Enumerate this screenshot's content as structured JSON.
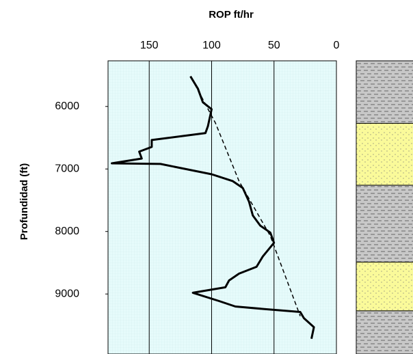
{
  "chart_data": {
    "type": "line",
    "title": "ROP ft/hr",
    "y_label": "Profundidad  (ft)",
    "xlim": [
      183,
      0
    ],
    "xticks": [
      150,
      100,
      50,
      0
    ],
    "ylim": [
      5270,
      9960
    ],
    "yticks": [
      6000,
      7000,
      8000,
      9000
    ],
    "grid": true,
    "series": [
      {
        "style": "solid",
        "color": "#000000",
        "values": [
          117,
          111,
          107,
          100,
          103,
          105,
          148,
          148,
          158,
          156,
          180,
          141,
          119,
          100,
          83,
          75,
          70,
          67,
          61,
          53,
          50,
          59,
          64,
          78,
          86,
          89,
          115,
          94,
          81,
          56,
          29,
          26,
          18,
          20
        ],
        "depth": [
          5518,
          5715,
          5934,
          6044,
          6318,
          6427,
          6537,
          6647,
          6723,
          6833,
          6910,
          6920,
          7008,
          7085,
          7195,
          7304,
          7523,
          7743,
          7907,
          8017,
          8181,
          8400,
          8565,
          8674,
          8784,
          8893,
          8981,
          9113,
          9200,
          9244,
          9288,
          9387,
          9530,
          9716
        ]
      },
      {
        "style": "dashed",
        "color": "#000000",
        "values": [
          116,
          97,
          78,
          53,
          29
        ],
        "depth": [
          5550,
          6263,
          7195,
          8071,
          9354
        ]
      }
    ],
    "lithology": {
      "boundaries": [
        6270,
        7260,
        8490,
        9270
      ],
      "patterns": [
        "shale",
        "sand",
        "shale",
        "sand",
        "shale"
      ]
    }
  }
}
